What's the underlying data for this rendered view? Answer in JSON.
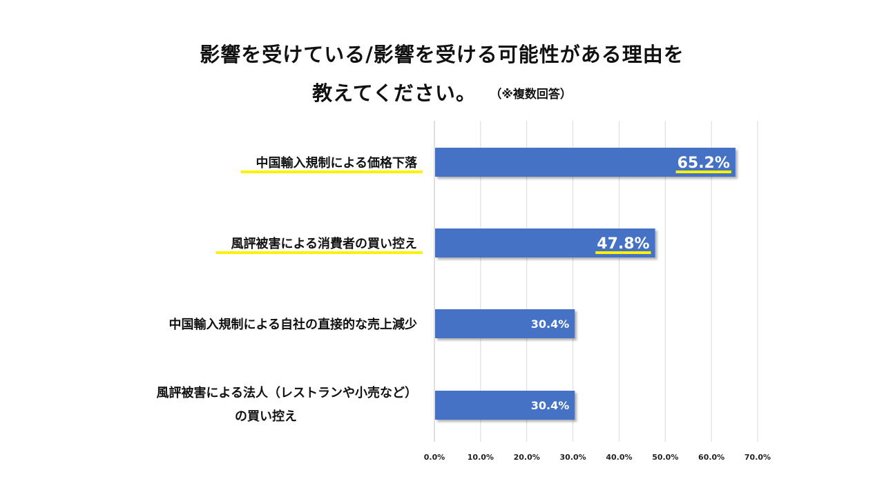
{
  "title": {
    "line1": "影響を受けている/影響を受ける可能性がある理由を",
    "line2": "教えてください。",
    "note": "（※複数回答）"
  },
  "chart_data": {
    "type": "bar",
    "orientation": "horizontal",
    "categories": [
      [
        "中国輸入規制による価格下落"
      ],
      [
        "風評被害による消費者の買い控え"
      ],
      [
        "中国輸入規制による自社の直接的な売上減少"
      ],
      [
        "風評被害による法人（レストランや小売など）",
        "の買い控え"
      ]
    ],
    "values": [
      65.2,
      47.8,
      30.4,
      30.4
    ],
    "value_labels": [
      "65.2%",
      "47.8%",
      "30.4%",
      "30.4%"
    ],
    "highlighted": [
      true,
      true,
      false,
      false
    ],
    "xlim": [
      0,
      70
    ],
    "xticks": [
      "0.0%",
      "10.0%",
      "20.0%",
      "30.0%",
      "40.0%",
      "50.0%",
      "60.0%",
      "70.0%"
    ],
    "grid": true,
    "bar_color": "#4472c4",
    "highlight_color": "#fff200"
  }
}
